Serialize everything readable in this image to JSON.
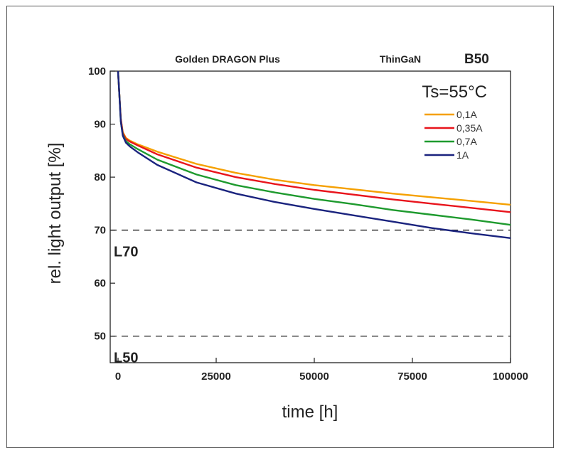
{
  "chart_data": {
    "type": "line",
    "header": {
      "left": "Golden DRAGON Plus",
      "middle": "ThinGaN",
      "right": "B50"
    },
    "condition": "Ts=55°C",
    "xlabel": "time [h]",
    "ylabel": "rel. light output [%]",
    "xlim": [
      -2000,
      100000
    ],
    "ylim": [
      45,
      100
    ],
    "xticks": [
      0,
      25000,
      50000,
      75000,
      100000
    ],
    "xtick_labels": [
      "0",
      "25000",
      "50000",
      "75000",
      "100000"
    ],
    "yticks": [
      50,
      60,
      70,
      80,
      90,
      100
    ],
    "ytick_labels": [
      "50",
      "60",
      "70",
      "80",
      "90",
      "100"
    ],
    "grid": false,
    "legend_position": "top-right",
    "reference_lines": [
      {
        "label": "L70",
        "y": 70
      },
      {
        "label": "L50",
        "y": 50
      }
    ],
    "series": [
      {
        "name": "0,1A",
        "color": "#f5a000",
        "x": [
          0,
          300,
          700,
          1200,
          2000,
          3000,
          5000,
          10000,
          20000,
          30000,
          40000,
          50000,
          60000,
          70000,
          80000,
          90000,
          100000
        ],
        "y": [
          100,
          96,
          91,
          88.5,
          87.4,
          86.9,
          86.2,
          84.8,
          82.5,
          80.8,
          79.5,
          78.5,
          77.7,
          76.9,
          76.2,
          75.5,
          74.8
        ]
      },
      {
        "name": "0,35A",
        "color": "#e8141c",
        "x": [
          0,
          300,
          700,
          1200,
          2000,
          3000,
          5000,
          10000,
          20000,
          30000,
          40000,
          50000,
          60000,
          70000,
          80000,
          90000,
          100000
        ],
        "y": [
          100,
          96,
          91,
          88.3,
          87.2,
          86.7,
          86.0,
          84.3,
          81.8,
          80.0,
          78.7,
          77.6,
          76.7,
          75.8,
          75.0,
          74.2,
          73.4
        ]
      },
      {
        "name": "0,7A",
        "color": "#1e9a2e",
        "x": [
          0,
          300,
          700,
          1200,
          2000,
          3000,
          5000,
          10000,
          20000,
          30000,
          40000,
          50000,
          60000,
          70000,
          80000,
          90000,
          100000
        ],
        "y": [
          100,
          96,
          90.5,
          88.0,
          86.8,
          86.2,
          85.3,
          83.3,
          80.5,
          78.5,
          77.1,
          75.9,
          74.9,
          73.8,
          72.9,
          72.0,
          71.0
        ]
      },
      {
        "name": "1A",
        "color": "#1a237e",
        "x": [
          0,
          300,
          700,
          1200,
          2000,
          3000,
          5000,
          10000,
          20000,
          30000,
          40000,
          50000,
          60000,
          70000,
          80000,
          90000,
          100000
        ],
        "y": [
          100,
          96,
          90.5,
          87.8,
          86.5,
          85.8,
          84.7,
          82.3,
          79.0,
          76.9,
          75.3,
          74.0,
          72.8,
          71.6,
          70.4,
          69.4,
          68.5
        ]
      }
    ]
  }
}
